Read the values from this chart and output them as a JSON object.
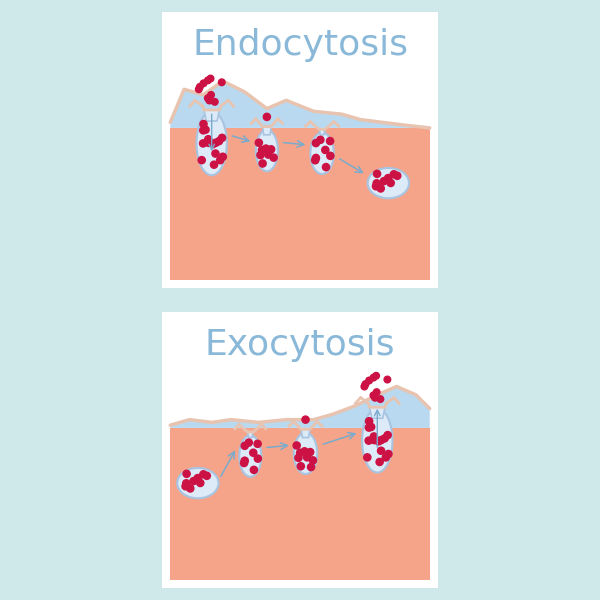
{
  "bg_outer": "#cfe8ea",
  "bg_panel": "#ffffff",
  "cell_color": "#f5a48a",
  "cyto_color": "#b8d9f0",
  "mem_edge_color": "#e8c4b0",
  "vesicle_fill": "#ddeaf8",
  "vesicle_edge": "#a8c4e0",
  "dot_color": "#cc1144",
  "arrow_color": "#7aabcc",
  "title_color": "#8ab8d8",
  "title_endo": "Endocytosis",
  "title_exo": "Exocytosis",
  "title_fontsize": 26
}
